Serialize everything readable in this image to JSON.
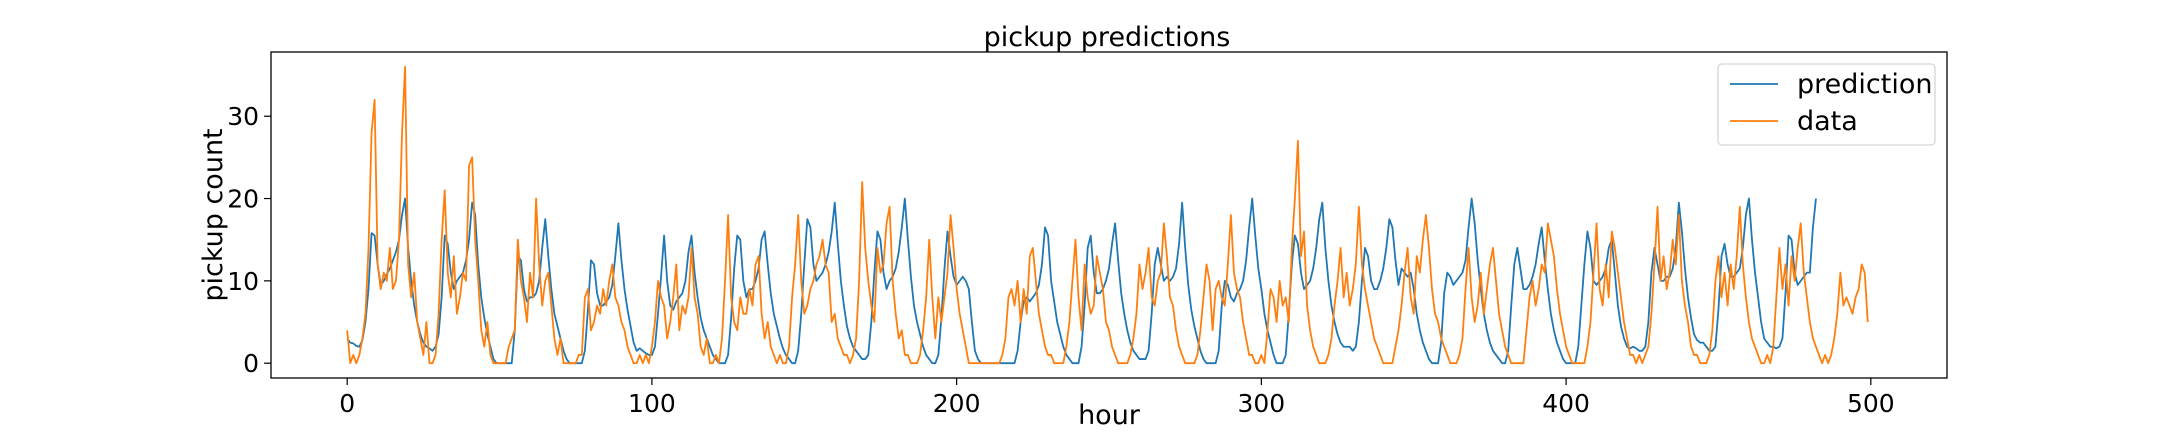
{
  "chart_data": {
    "type": "line",
    "title": "pickup predictions",
    "xlabel": "hour",
    "ylabel": "pickup count",
    "xlim": [
      -25,
      525
    ],
    "ylim": [
      -1.8,
      37.8
    ],
    "xticks": [
      0,
      100,
      200,
      300,
      400,
      500
    ],
    "yticks": [
      0,
      10,
      20,
      30
    ],
    "grid": false,
    "legend_position": "top-right",
    "colors": {
      "prediction": "#1f77b4",
      "data": "#ff7f0e"
    },
    "series": [
      {
        "name": "prediction",
        "values": [
          3.0,
          2.5,
          2.4,
          2.1,
          2.0,
          2.8,
          5.0,
          9.0,
          15.8,
          15.5,
          12.0,
          9.5,
          10.0,
          10.8,
          11.5,
          12.5,
          13.5,
          15.0,
          18.0,
          20.0,
          14.0,
          10.0,
          7.0,
          5.0,
          3.5,
          2.5,
          2.0,
          1.8,
          1.5,
          2.0,
          3.5,
          8.0,
          15.5,
          14.5,
          11.0,
          9.0,
          10.0,
          10.5,
          11.0,
          12.5,
          15.0,
          19.5,
          18.0,
          12.0,
          8.0,
          5.5,
          3.5,
          2.0,
          0.5,
          0.0,
          0.0,
          0.0,
          0.0,
          0.0,
          0.0,
          4.0,
          13.0,
          12.5,
          9.0,
          7.5,
          8.0,
          8.0,
          8.5,
          10.0,
          14.0,
          17.5,
          13.0,
          9.0,
          6.0,
          4.5,
          3.0,
          1.5,
          0.5,
          0.0,
          0.0,
          0.0,
          0.0,
          0.0,
          1.5,
          6.5,
          12.5,
          12.0,
          8.5,
          7.0,
          7.0,
          7.5,
          8.0,
          9.5,
          13.0,
          17.0,
          12.5,
          9.0,
          6.5,
          4.5,
          2.5,
          1.5,
          1.8,
          1.5,
          1.2,
          1.0,
          1.0,
          2.0,
          6.0,
          10.5,
          15.5,
          10.0,
          7.0,
          6.5,
          7.5,
          8.0,
          8.5,
          10.0,
          13.5,
          15.5,
          11.0,
          8.0,
          5.5,
          4.0,
          3.0,
          2.0,
          1.0,
          0.5,
          0.0,
          0.0,
          0.0,
          1.0,
          5.5,
          11.5,
          15.5,
          15.0,
          10.0,
          8.0,
          9.0,
          9.0,
          10.0,
          11.5,
          15.0,
          16.0,
          12.0,
          8.5,
          6.0,
          4.5,
          3.0,
          1.8,
          1.0,
          0.5,
          0.0,
          0.0,
          1.5,
          6.0,
          12.0,
          17.5,
          16.5,
          12.0,
          10.0,
          10.5,
          11.0,
          12.0,
          13.5,
          16.0,
          19.5,
          14.5,
          10.0,
          7.0,
          4.5,
          3.0,
          2.0,
          1.5,
          1.0,
          0.5,
          0.5,
          1.0,
          5.0,
          11.0,
          16.0,
          15.0,
          11.0,
          9.0,
          10.0,
          10.5,
          11.5,
          13.5,
          16.5,
          20.0,
          15.0,
          10.5,
          7.0,
          5.0,
          3.5,
          2.0,
          1.0,
          0.5,
          0.0,
          0.0,
          1.0,
          5.5,
          11.5,
          16.0,
          13.0,
          10.5,
          9.5,
          10.0,
          10.5,
          10.0,
          9.0,
          5.0,
          1.5,
          0.5,
          0.0,
          0.0,
          0.0,
          0.0,
          0.0,
          0.0,
          0.0,
          0.0,
          0.0,
          0.0,
          0.0,
          0.0,
          1.5,
          5.0,
          7.5,
          8.0,
          7.5,
          8.0,
          8.5,
          9.5,
          12.0,
          16.5,
          15.5,
          10.0,
          7.5,
          5.0,
          3.5,
          2.0,
          1.0,
          0.5,
          0.0,
          0.0,
          0.0,
          2.0,
          7.0,
          14.0,
          15.5,
          11.0,
          8.5,
          8.5,
          9.0,
          10.0,
          11.5,
          14.5,
          17.0,
          12.5,
          8.5,
          6.0,
          4.0,
          2.5,
          1.5,
          1.0,
          0.5,
          0.5,
          0.5,
          1.5,
          6.0,
          12.0,
          14.0,
          12.0,
          10.0,
          10.5,
          10.0,
          10.5,
          11.5,
          14.5,
          19.5,
          14.0,
          9.5,
          6.5,
          4.5,
          3.0,
          1.5,
          0.5,
          0.0,
          0.0,
          0.0,
          0.0,
          1.5,
          7.0,
          10.0,
          9.5,
          8.0,
          7.5,
          8.5,
          9.0,
          10.0,
          12.5,
          16.5,
          20.0,
          15.5,
          11.5,
          9.0,
          6.0,
          4.0,
          2.5,
          1.0,
          0.0,
          0.0,
          0.0,
          1.0,
          6.0,
          12.0,
          15.5,
          14.5,
          11.0,
          9.0,
          9.5,
          10.0,
          11.5,
          14.0,
          17.5,
          19.5,
          14.0,
          10.0,
          7.0,
          5.0,
          3.5,
          2.5,
          2.0,
          2.0,
          2.0,
          1.5,
          2.0,
          5.0,
          10.0,
          14.0,
          13.0,
          10.0,
          9.0,
          9.0,
          10.0,
          11.5,
          14.0,
          17.5,
          16.5,
          12.5,
          9.5,
          11.5,
          11.0,
          10.5,
          11.0,
          9.0,
          6.0,
          4.0,
          2.5,
          1.5,
          0.5,
          0.0,
          0.0,
          0.0,
          2.5,
          8.5,
          11.0,
          10.5,
          9.5,
          10.0,
          10.5,
          11.0,
          12.5,
          16.5,
          20.0,
          17.0,
          12.5,
          9.0,
          6.0,
          4.0,
          2.5,
          1.5,
          1.0,
          0.5,
          0.0,
          0.0,
          1.5,
          7.0,
          12.0,
          14.0,
          11.5,
          9.0,
          9.0,
          9.5,
          10.5,
          12.0,
          14.5,
          16.5,
          12.5,
          9.0,
          6.0,
          4.0,
          2.5,
          1.5,
          0.5,
          0.0,
          0.0,
          0.0,
          0.0,
          2.0,
          7.0,
          12.0,
          16.0,
          14.0,
          10.0,
          9.5,
          10.0,
          10.5,
          11.5,
          14.0,
          15.0,
          11.0,
          7.0,
          4.5,
          3.0,
          2.0,
          1.8,
          2.0,
          1.8,
          1.5,
          1.5,
          2.0,
          5.0,
          11.0,
          14.0,
          12.0,
          10.0,
          10.0,
          10.5,
          10.5,
          11.5,
          14.0,
          19.5,
          16.0,
          11.5,
          8.0,
          5.5,
          3.5,
          2.8,
          2.5,
          2.5,
          2.0,
          1.5,
          1.5,
          2.0,
          6.5,
          13.0,
          14.5,
          12.0,
          10.5,
          10.5,
          11.0,
          11.5,
          14.0,
          18.0,
          20.0,
          15.0,
          11.0,
          8.0,
          5.0,
          3.0,
          2.5,
          2.0,
          2.0,
          1.8,
          2.0,
          3.0,
          8.5,
          15.5,
          15.0,
          11.0,
          9.5,
          10.0,
          10.5,
          11.0,
          11.0,
          16.5,
          20.0
        ]
      },
      {
        "name": "data",
        "values": [
          4.0,
          0.0,
          1.0,
          0.0,
          1.0,
          3.0,
          6.0,
          14.0,
          28.0,
          32.0,
          12.0,
          9.0,
          11.0,
          10.0,
          14.0,
          9.0,
          10.0,
          15.0,
          28.0,
          36.0,
          12.0,
          8.0,
          11.0,
          5.0,
          3.0,
          1.0,
          5.0,
          0.0,
          0.0,
          1.0,
          6.0,
          15.0,
          21.0,
          11.0,
          8.0,
          13.0,
          6.0,
          8.0,
          11.0,
          10.0,
          24.0,
          25.0,
          15.0,
          10.0,
          4.0,
          2.0,
          5.0,
          1.0,
          0.0,
          0.0,
          0.0,
          0.0,
          0.0,
          2.0,
          3.0,
          4.0,
          15.0,
          10.0,
          8.0,
          5.0,
          11.0,
          8.0,
          20.0,
          12.0,
          7.0,
          10.0,
          11.0,
          7.0,
          3.0,
          1.0,
          3.0,
          0.0,
          0.0,
          0.0,
          0.0,
          0.0,
          1.0,
          1.0,
          8.0,
          9.0,
          4.0,
          5.0,
          7.0,
          6.0,
          9.0,
          7.0,
          10.0,
          12.0,
          8.0,
          7.0,
          5.0,
          4.0,
          2.0,
          1.0,
          0.0,
          0.0,
          1.0,
          0.0,
          1.0,
          0.0,
          2.0,
          5.0,
          10.0,
          8.0,
          7.0,
          3.0,
          5.0,
          8.0,
          12.0,
          4.0,
          7.0,
          6.0,
          8.0,
          14.0,
          8.0,
          6.0,
          2.0,
          1.0,
          3.0,
          0.0,
          0.0,
          1.0,
          0.0,
          3.0,
          10.0,
          18.0,
          8.0,
          5.0,
          4.0,
          8.0,
          6.0,
          6.0,
          9.0,
          7.0,
          12.0,
          13.0,
          6.0,
          3.0,
          5.0,
          2.0,
          1.0,
          0.0,
          1.0,
          0.0,
          0.0,
          2.0,
          8.0,
          12.0,
          18.0,
          10.0,
          6.0,
          7.0,
          9.0,
          10.0,
          12.0,
          13.0,
          15.0,
          12.0,
          11.0,
          5.0,
          6.0,
          3.0,
          2.0,
          1.0,
          1.0,
          0.0,
          1.0,
          3.0,
          10.0,
          22.0,
          14.0,
          10.0,
          7.0,
          5.0,
          14.0,
          11.0,
          12.0,
          17.0,
          19.0,
          10.0,
          6.0,
          3.0,
          4.0,
          1.0,
          1.0,
          0.0,
          0.0,
          0.0,
          1.0,
          4.0,
          8.0,
          15.0,
          8.0,
          3.0,
          8.0,
          5.0,
          8.0,
          11.0,
          18.0,
          14.0,
          9.0,
          6.0,
          4.0,
          2.0,
          0.0,
          0.0,
          0.0,
          0.0,
          0.0,
          0.0,
          0.0,
          0.0,
          0.0,
          0.0,
          0.0,
          1.0,
          3.0,
          8.0,
          9.0,
          7.0,
          10.0,
          5.0,
          9.0,
          6.0,
          13.0,
          14.0,
          10.0,
          6.0,
          4.0,
          2.0,
          1.0,
          1.0,
          0.0,
          0.0,
          0.0,
          0.0,
          2.0,
          5.0,
          10.0,
          15.0,
          8.0,
          4.0,
          12.0,
          8.0,
          6.0,
          7.0,
          13.0,
          11.0,
          9.0,
          5.0,
          4.0,
          2.0,
          1.0,
          0.0,
          0.0,
          0.0,
          0.0,
          1.0,
          3.0,
          6.0,
          12.0,
          9.0,
          11.0,
          14.0,
          8.0,
          7.0,
          10.0,
          11.0,
          17.0,
          13.0,
          8.0,
          7.0,
          4.0,
          2.0,
          1.0,
          0.0,
          0.0,
          0.0,
          0.0,
          1.0,
          4.0,
          8.0,
          12.0,
          10.0,
          4.0,
          9.0,
          10.0,
          8.0,
          7.0,
          12.0,
          18.0,
          11.0,
          9.0,
          8.0,
          5.0,
          3.0,
          1.0,
          1.0,
          0.0,
          0.0,
          1.0,
          0.0,
          4.0,
          9.0,
          8.0,
          5.0,
          10.0,
          7.0,
          8.0,
          5.0,
          14.0,
          20.0,
          27.0,
          13.0,
          16.0,
          7.0,
          4.0,
          2.0,
          1.0,
          0.0,
          0.0,
          0.0,
          1.0,
          3.0,
          7.0,
          10.0,
          14.0,
          8.0,
          11.0,
          7.0,
          9.0,
          12.0,
          19.0,
          12.0,
          9.0,
          7.0,
          5.0,
          3.0,
          2.0,
          1.0,
          0.0,
          0.0,
          0.0,
          0.0,
          2.0,
          4.0,
          7.0,
          11.0,
          14.0,
          8.0,
          6.0,
          13.0,
          11.0,
          15.0,
          18.0,
          14.0,
          9.0,
          6.0,
          5.0,
          3.0,
          2.0,
          1.0,
          0.0,
          0.0,
          0.0,
          1.0,
          3.0,
          9.0,
          14.0,
          8.0,
          5.0,
          7.0,
          11.0,
          6.0,
          9.0,
          12.0,
          14.0,
          10.0,
          6.0,
          4.0,
          2.0,
          1.0,
          0.0,
          0.0,
          0.0,
          0.0,
          0.0,
          4.0,
          8.0,
          10.0,
          7.0,
          9.0,
          12.0,
          11.0,
          17.0,
          15.0,
          13.0,
          9.0,
          6.0,
          4.0,
          2.0,
          1.0,
          0.0,
          0.0,
          0.0,
          0.0,
          0.0,
          2.0,
          5.0,
          11.0,
          17.0,
          9.0,
          7.0,
          12.0,
          8.0,
          16.0,
          14.0,
          11.0,
          8.0,
          5.0,
          3.0,
          1.0,
          1.0,
          0.0,
          1.0,
          0.0,
          1.0,
          2.0,
          6.0,
          12.0,
          19.0,
          10.0,
          13.0,
          9.0,
          11.0,
          15.0,
          12.0,
          18.0,
          10.0,
          7.0,
          5.0,
          2.0,
          1.0,
          1.0,
          0.0,
          0.0,
          0.0,
          1.0,
          4.0,
          10.0,
          13.0,
          8.0,
          11.0,
          7.0,
          12.0,
          9.0,
          13.0,
          19.0,
          12.0,
          8.0,
          5.0,
          3.0,
          2.0,
          1.0,
          0.0,
          0.0,
          1.0,
          0.0,
          2.0,
          8.0,
          14.0,
          9.0,
          12.0,
          7.0,
          13.0,
          10.0,
          14.0,
          17.0,
          11.0,
          8.0,
          5.0,
          3.0,
          2.0,
          1.0,
          0.0,
          1.0,
          0.0,
          1.0,
          3.0,
          6.0,
          11.0,
          7.0,
          8.0,
          7.0,
          6.0,
          8.0,
          9.0,
          12.0,
          11.0,
          5.0
        ]
      }
    ]
  }
}
